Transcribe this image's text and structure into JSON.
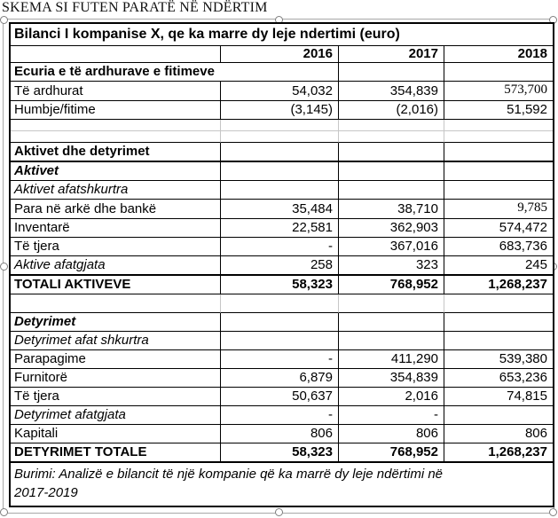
{
  "page_title": "SKEMA SI FUTEN PARATË NË NDËRTIM",
  "table": {
    "header": "Bilanci I kompanise X, qe ka marre dy leje ndertimi  (euro)",
    "col_headers": {
      "label": "",
      "y2016": "2016",
      "y2017": "2017",
      "y2018": "2018"
    },
    "rows": {
      "ecuria": {
        "label": "Ecuria e të ardhurave e fitimeve",
        "y2016": "",
        "y2017": "",
        "y2018": ""
      },
      "te_ardhurat": {
        "label": "Të ardhurat",
        "y2016": "54,032",
        "y2017": "354,839",
        "y2018": "573,700"
      },
      "humbje_fitime": {
        "label": "Humbje/fitime",
        "y2016": "(3,145)",
        "y2017": "(2,016)",
        "y2018": "51,592"
      },
      "aktivet_dhe_detyrimet": {
        "label": "Aktivet dhe detyrimet",
        "y2016": "",
        "y2017": "",
        "y2018": ""
      },
      "aktivet": {
        "label": "Aktivet",
        "y2016": "",
        "y2017": "",
        "y2018": ""
      },
      "aktivet_afatshkurtra": {
        "label": "Aktivet afatshkurtra",
        "y2016": "",
        "y2017": "",
        "y2018": ""
      },
      "para_ne_arke": {
        "label": "Para në arkë dhe bankë",
        "y2016": "35,484",
        "y2017": "38,710",
        "y2018": "9,785"
      },
      "inventare": {
        "label": "Inventarë",
        "y2016": "22,581",
        "y2017": "362,903",
        "y2018": "574,472"
      },
      "te_tjera_aktive": {
        "label": "Të tjera",
        "y2016": "-",
        "y2017": "367,016",
        "y2018": "683,736"
      },
      "aktive_afatgjata": {
        "label": "Aktive afatgjata",
        "y2016": "258",
        "y2017": "323",
        "y2018": "245"
      },
      "totali_aktiveve": {
        "label": "TOTALI AKTIVEVE",
        "y2016": "58,323",
        "y2017": "768,952",
        "y2018": "1,268,237"
      },
      "detyrimet": {
        "label": "Detyrimet",
        "y2016": "",
        "y2017": "",
        "y2018": ""
      },
      "detyrimet_afat_shkurtra": {
        "label": "Detyrimet afat shkurtra",
        "y2016": "",
        "y2017": "",
        "y2018": ""
      },
      "parapagime": {
        "label": "Parapagime",
        "y2016": "-",
        "y2017": "411,290",
        "y2018": "539,380"
      },
      "furnitore": {
        "label": "Furnitorë",
        "y2016": "6,879",
        "y2017": "354,839",
        "y2018": "653,236"
      },
      "te_tjera_detyrime": {
        "label": "Të tjera",
        "y2016": "50,637",
        "y2017": "2,016",
        "y2018": "74,815"
      },
      "detyrimet_afatgjata": {
        "label": "Detyrimet afatgjata",
        "y2016": "-",
        "y2017": "-",
        "y2018": ""
      },
      "kapitali": {
        "label": "Kapitali",
        "y2016": "806",
        "y2017": "806",
        "y2018": "806"
      },
      "detyrimet_totale": {
        "label": "DETYRIMET TOTALE",
        "y2016": "58,323",
        "y2017": "768,952",
        "y2018": "1,268,237"
      }
    },
    "footer": {
      "line1": "Burimi: Analizë e bilancit të një kompanie që ka marrë dy leje ndërtimi në",
      "line2": "2017-2019"
    }
  },
  "colors": {
    "background": "#ffffff",
    "text": "#000000",
    "cell_border": "#000000",
    "gridline_gray": "#c6c6c6",
    "selection_outline": "#a8a8a8",
    "handle_border": "#7f7f7f",
    "handle_fill": "#ffffff"
  }
}
